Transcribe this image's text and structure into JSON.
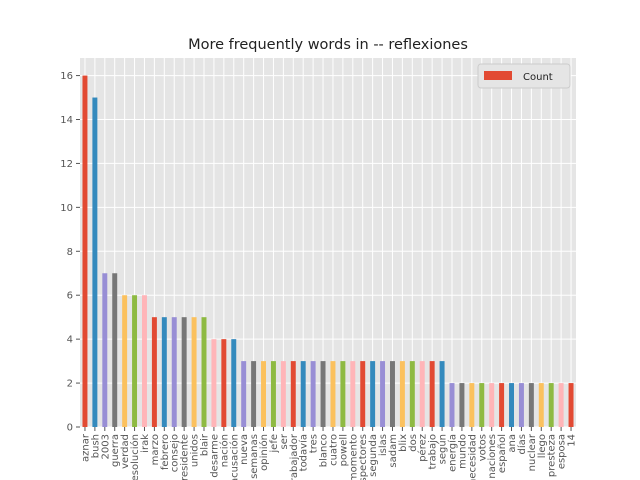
{
  "chart_data": {
    "type": "bar",
    "title": "More frequently words in -- reflexiones",
    "xlabel": "",
    "ylabel": "",
    "ylim": [
      0,
      16.8
    ],
    "yticks": [
      0,
      2,
      4,
      6,
      8,
      10,
      12,
      14,
      16
    ],
    "grid": true,
    "legend_placement": "top-right",
    "categories": [
      "aznar",
      "bush",
      "2003",
      "guerra",
      "verdad",
      "resolución",
      "irak",
      "marzo",
      "febrero",
      "consejo",
      "presidente",
      "unidos",
      "blair",
      "desarme",
      "nación",
      "acusación",
      "nueva",
      "semanas",
      "opinión",
      "jefe",
      "ser",
      "trabajador",
      "todavía",
      "tres",
      "blanco",
      "cuatro",
      "powell",
      "momento",
      "inspectores",
      "segunda",
      "islas",
      "sadam",
      "blix",
      "dos",
      "pérez",
      "trabajo",
      "según",
      "energía",
      "mundo",
      "necesidad",
      "votos",
      "naciones",
      "español",
      "ana",
      "días",
      "nuclear",
      "llego",
      "presteza",
      "esposa",
      "14"
    ],
    "series": [
      {
        "name": "Count",
        "values": [
          16,
          15,
          7,
          7,
          6,
          6,
          6,
          5,
          5,
          5,
          5,
          5,
          5,
          4,
          4,
          4,
          3,
          3,
          3,
          3,
          3,
          3,
          3,
          3,
          3,
          3,
          3,
          3,
          3,
          3,
          3,
          3,
          3,
          3,
          3,
          3,
          3,
          2,
          2,
          2,
          2,
          2,
          2,
          2,
          2,
          2,
          2,
          2,
          2,
          2
        ]
      }
    ],
    "bar_colors": [
      "#E24A33",
      "#348ABD",
      "#988ED5",
      "#777777",
      "#FBC15E",
      "#8EBA42",
      "#FFB5B8"
    ],
    "background_color": "#E5E5E5",
    "grid_color": "#FFFFFF"
  }
}
